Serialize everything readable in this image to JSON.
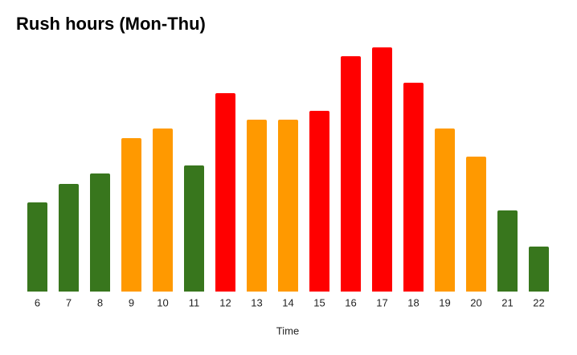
{
  "chart_data": {
    "type": "bar",
    "title": "Rush hours (Mon-Thu)",
    "x_label": "Time",
    "categories": [
      "6",
      "7",
      "8",
      "9",
      "10",
      "11",
      "12",
      "13",
      "14",
      "15",
      "16",
      "17",
      "18",
      "19",
      "20",
      "21",
      "22"
    ],
    "values": [
      111,
      134,
      147,
      191,
      203,
      157,
      247,
      214,
      214,
      225,
      293,
      304,
      260,
      203,
      168,
      101,
      56
    ],
    "colors": [
      "#38761d",
      "#38761d",
      "#38761d",
      "#ff9900",
      "#ff9900",
      "#38761d",
      "#ff0000",
      "#ff9900",
      "#ff9900",
      "#ff0000",
      "#ff0000",
      "#ff0000",
      "#ff0000",
      "#ff9900",
      "#ff9900",
      "#38761d",
      "#38761d"
    ],
    "grid": false
  }
}
